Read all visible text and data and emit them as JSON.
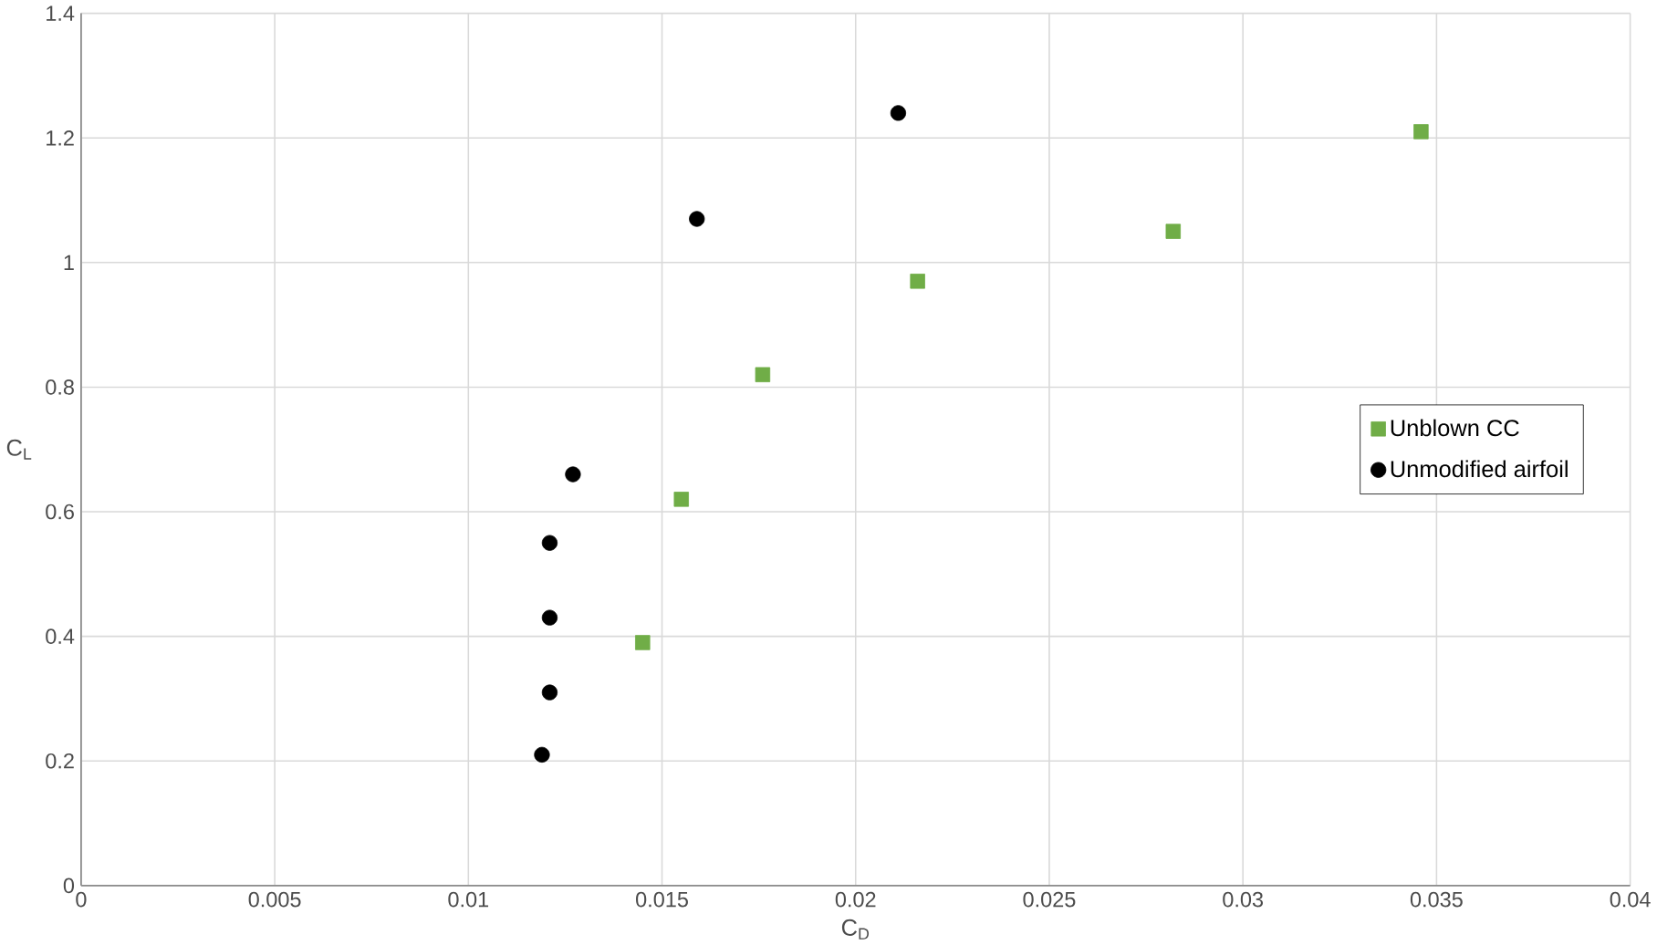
{
  "chart_data": {
    "type": "scatter",
    "xlabel": "C$_{D}$",
    "ylabel": "C$_{L}$",
    "xlim": [
      0,
      0.04
    ],
    "xticks": [
      0,
      0.005,
      0.01,
      0.015,
      0.02,
      0.025,
      0.03,
      0.035,
      0.04
    ],
    "ylim": [
      0,
      1.4
    ],
    "yticks": [
      0,
      0.2,
      0.4,
      0.6,
      0.8,
      1,
      1.2,
      1.4
    ],
    "grid": true,
    "legend": "right",
    "series": [
      {
        "name": "Unblown CC",
        "color": "#70ad47",
        "marker": "square",
        "x": [
          0.0145,
          0.0155,
          0.0176,
          0.0216,
          0.0282,
          0.0346
        ],
        "values": [
          0.39,
          0.62,
          0.82,
          0.97,
          1.05,
          1.21
        ]
      },
      {
        "name": "Unmodified airfoil",
        "color": "#000000",
        "marker": "circle",
        "x": [
          0.0119,
          0.0121,
          0.0121,
          0.0121,
          0.0127,
          0.0159,
          0.0211
        ],
        "values": [
          0.21,
          0.31,
          0.43,
          0.55,
          0.66,
          1.07,
          1.24
        ]
      }
    ]
  }
}
